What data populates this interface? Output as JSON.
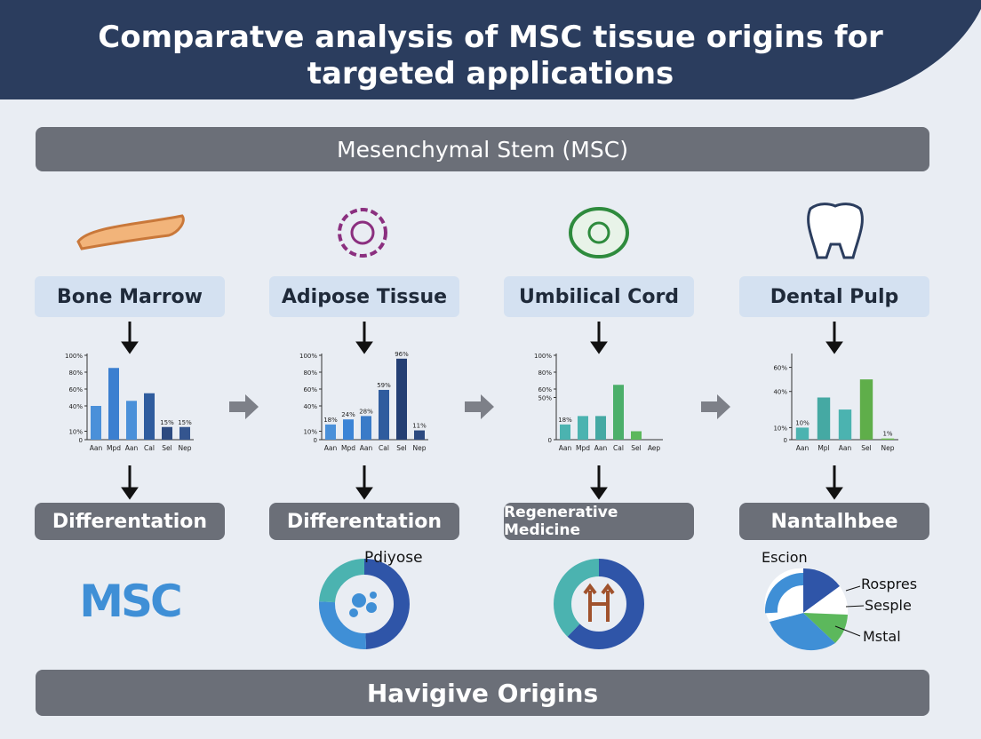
{
  "header": {
    "title": "Comparatve analysis of MSC tissue origins for targeted applications"
  },
  "banner": "Mesenchymal Stem (MSC)",
  "columns": [
    {
      "label": "Bone Marrow",
      "chart": {
        "type": "bar",
        "categories": [
          "Aan",
          "Mpd",
          "Aan",
          "Cal",
          "Sel",
          "Nep"
        ],
        "values": [
          40,
          85,
          46,
          55,
          15,
          15
        ],
        "value_labels": [
          null,
          null,
          null,
          null,
          "15%",
          "15%"
        ],
        "colors": [
          "#4a90d9",
          "#3b7fd0",
          "#4a90d9",
          "#2f5c9e",
          "#2c4a80",
          "#34558f"
        ],
        "ylim": [
          0,
          100
        ],
        "yticks": [
          0,
          {
            "value": 10,
            "label": "10%"
          },
          {
            "value": 40,
            "label": "40%"
          },
          {
            "value": 60,
            "label": "60%"
          },
          {
            "value": 80,
            "label": "80%"
          },
          {
            "value": 100,
            "label": "100%"
          }
        ]
      },
      "outcome": "Differentation",
      "bottom": {
        "logo": "MSC"
      }
    },
    {
      "label": "Adipose Tissue",
      "chart": {
        "type": "bar",
        "categories": [
          "Aan",
          "Mpd",
          "Aan",
          "Cal",
          "Sel",
          "Nep"
        ],
        "values": [
          18,
          24,
          28,
          59,
          96,
          11
        ],
        "value_labels": [
          "18%",
          "24%",
          "28%",
          "59%",
          "96%",
          "11%"
        ],
        "colors": [
          "#4a90d9",
          "#3b84d6",
          "#3a7bc8",
          "#2f5c9e",
          "#243f73",
          "#2c4a80"
        ],
        "ylim": [
          0,
          100
        ],
        "yticks": [
          0,
          {
            "value": 10,
            "label": "10%"
          },
          {
            "value": 40,
            "label": "40%"
          },
          {
            "value": 60,
            "label": "60%"
          },
          {
            "value": 80,
            "label": "80%"
          },
          {
            "value": 100,
            "label": "100%"
          }
        ]
      },
      "outcome": "Differentation",
      "bottom": {
        "caption": "Pdiyose"
      }
    },
    {
      "label": "Umbilical Cord",
      "chart": {
        "type": "bar",
        "categories": [
          "Aan",
          "Mpd",
          "Aan",
          "Cal",
          "Sel",
          "Aep"
        ],
        "values": [
          18,
          28,
          28,
          65,
          10,
          0
        ],
        "value_labels": [
          "18%",
          null,
          null,
          null,
          null,
          null
        ],
        "colors": [
          "#4bb3b0",
          "#4bb3b0",
          "#45a9a3",
          "#4caf6a",
          "#5cb85c",
          "#5cb85c"
        ],
        "ylim": [
          0,
          100
        ],
        "yticks": [
          0,
          {
            "value": 50,
            "label": "50%"
          },
          {
            "value": 60,
            "label": "60%"
          },
          {
            "value": 80,
            "label": "80%"
          },
          {
            "value": 100,
            "label": "100%"
          }
        ]
      },
      "outcome": "Regenerative Medicine",
      "bottom": {}
    },
    {
      "label": "Dental Pulp",
      "chart": {
        "type": "bar",
        "categories": [
          "Aan",
          "Mpl",
          "Aan",
          "Sel",
          "Nep"
        ],
        "values": [
          10,
          35,
          25,
          50,
          1
        ],
        "value_labels": [
          "10%",
          null,
          null,
          null,
          "1%"
        ],
        "colors": [
          "#4bb3b0",
          "#45a9a3",
          "#4bb3b0",
          "#5fae4a",
          "#6cbf4f"
        ],
        "ylim": [
          0,
          70
        ],
        "yticks": [
          0,
          {
            "value": 10,
            "label": "10%"
          },
          {
            "value": 40,
            "label": "40%"
          },
          {
            "value": 60,
            "label": "60%"
          }
        ]
      },
      "outcome": "Nantalhbee",
      "bottom": {
        "labels": [
          "Escion",
          "Rospres",
          "Sesple",
          "Mstal"
        ]
      }
    }
  ],
  "footer": "Havigive Origins"
}
